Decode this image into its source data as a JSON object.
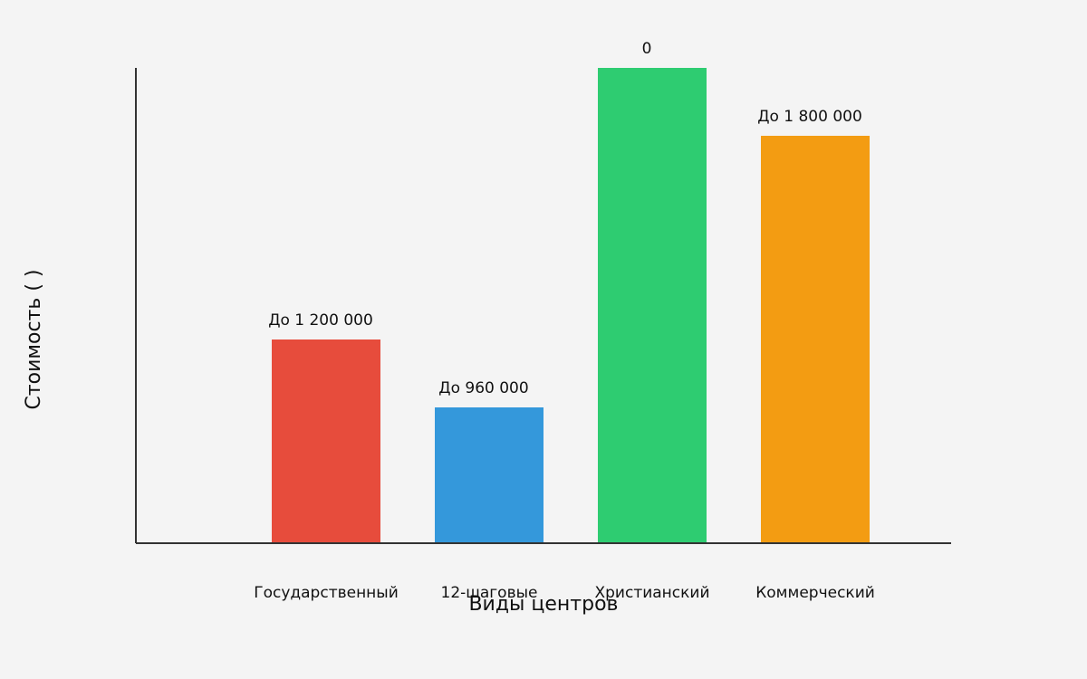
{
  "chart_data": {
    "type": "bar",
    "categories": [
      "Государственный",
      "12-шаговые",
      "Христианский",
      "Коммерческий"
    ],
    "values": [
      3,
      2,
      7,
      6
    ],
    "annotations": [
      "До 1 200 000",
      "До 960 000",
      "0",
      "До 1 800 000"
    ],
    "colors": [
      "#e74c3c",
      "#3498db",
      "#2ecc71",
      "#f39c12"
    ],
    "ylim": [
      0,
      7
    ],
    "xlabel": "Виды центров",
    "ylabel": "Стоимость (  )"
  }
}
